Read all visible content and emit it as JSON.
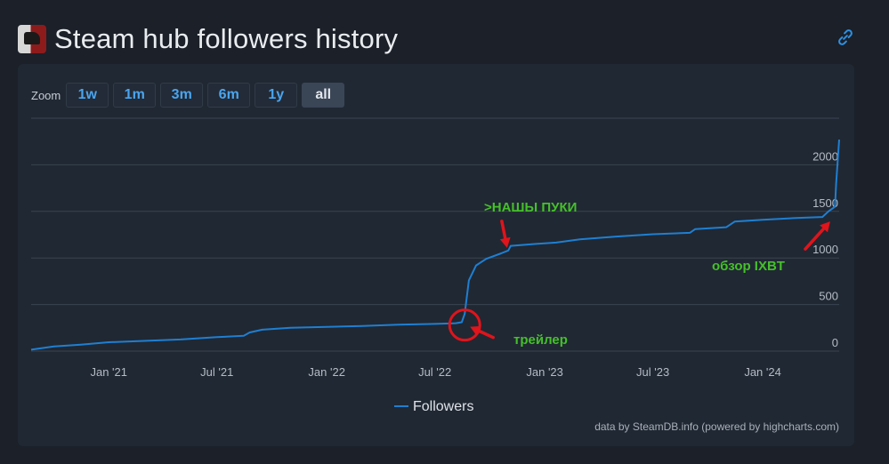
{
  "header": {
    "title": "Steam hub followers history"
  },
  "zoom": {
    "label": "Zoom",
    "buttons": [
      "1w",
      "1m",
      "3m",
      "6m",
      "1y",
      "all"
    ],
    "active": "all"
  },
  "credits": "data by SteamDB.info (powered by highcharts.com)",
  "colors": {
    "series": "#1f7fd1",
    "annotation": "#45c02a",
    "arrow": "#e0141b"
  },
  "annotations": [
    {
      "text": ">НАШЫ ПУКИ",
      "target_date": "2022-10-30",
      "target_value": 1070
    },
    {
      "text": "обзор IXBT",
      "target_date": "2024-04-26",
      "target_value": 1420
    },
    {
      "text": "трейлер",
      "target_date": "2022-08-20",
      "target_value": 280
    }
  ],
  "chart_data": {
    "type": "line",
    "title": "",
    "xlabel": "",
    "ylabel": "",
    "x_ticks": [
      "Jan '21",
      "Jul '21",
      "Jan '22",
      "Jul '22",
      "Jan '23",
      "Jul '23",
      "Jan '24"
    ],
    "y_ticks": [
      0,
      500,
      1000,
      1500,
      2000
    ],
    "ylim": [
      0,
      2500
    ],
    "xlim": [
      "2020-08-24",
      "2024-05-08"
    ],
    "grid": true,
    "legend": "bottom-center",
    "series": [
      {
        "name": "Followers",
        "color": "#1f7fd1",
        "points": [
          [
            "2020-08-24",
            15
          ],
          [
            "2020-10-01",
            50
          ],
          [
            "2020-11-15",
            70
          ],
          [
            "2021-01-01",
            95
          ],
          [
            "2021-03-01",
            110
          ],
          [
            "2021-05-01",
            125
          ],
          [
            "2021-07-01",
            150
          ],
          [
            "2021-08-15",
            165
          ],
          [
            "2021-08-25",
            200
          ],
          [
            "2021-09-15",
            230
          ],
          [
            "2021-11-01",
            250
          ],
          [
            "2022-01-01",
            260
          ],
          [
            "2022-03-01",
            270
          ],
          [
            "2022-05-01",
            283
          ],
          [
            "2022-07-01",
            292
          ],
          [
            "2022-08-05",
            300
          ],
          [
            "2022-08-15",
            310
          ],
          [
            "2022-08-20",
            400
          ],
          [
            "2022-08-27",
            760
          ],
          [
            "2022-09-08",
            920
          ],
          [
            "2022-09-25",
            990
          ],
          [
            "2022-10-20",
            1050
          ],
          [
            "2022-11-01",
            1080
          ],
          [
            "2022-11-05",
            1130
          ],
          [
            "2022-12-15",
            1150
          ],
          [
            "2023-01-20",
            1165
          ],
          [
            "2023-03-01",
            1200
          ],
          [
            "2023-05-01",
            1230
          ],
          [
            "2023-07-01",
            1255
          ],
          [
            "2023-09-01",
            1270
          ],
          [
            "2023-09-10",
            1310
          ],
          [
            "2023-11-01",
            1330
          ],
          [
            "2023-11-15",
            1390
          ],
          [
            "2024-01-01",
            1410
          ],
          [
            "2024-03-01",
            1430
          ],
          [
            "2024-04-10",
            1440
          ],
          [
            "2024-04-20",
            1500
          ],
          [
            "2024-05-01",
            1550
          ],
          [
            "2024-05-03",
            1800
          ],
          [
            "2024-05-08",
            2270
          ]
        ]
      }
    ]
  }
}
